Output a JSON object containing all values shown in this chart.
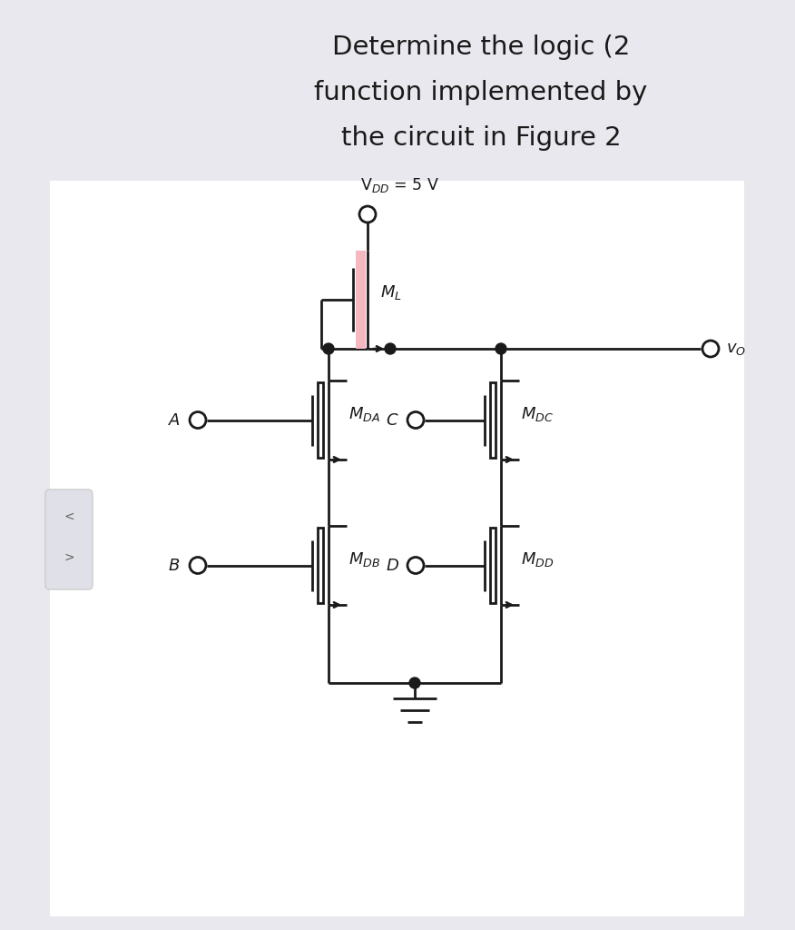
{
  "title_lines": [
    "Determine the logic (2",
    "function implemented by",
    "the circuit in Figure 2"
  ],
  "title_fontsize": 21,
  "title_color": "#1a1a1a",
  "bg_color": "#e8e8ee",
  "circuit_bg": "#ffffff",
  "line_color": "#1a1a1a",
  "line_width": 2.0,
  "mosfet_channel_color": "#f5b8c0",
  "vdd_label": "V$_{DD}$ = 5 V",
  "vo_label": "$v_O$",
  "ml_label": "$M_L$",
  "mda_label": "$M_{DA}$",
  "mdb_label": "$M_{DB}$",
  "mdc_label": "$M_{DC}$",
  "mdd_label": "$M_{DD}$",
  "a_label": "A",
  "b_label": "B",
  "c_label": "C",
  "d_label": "D"
}
